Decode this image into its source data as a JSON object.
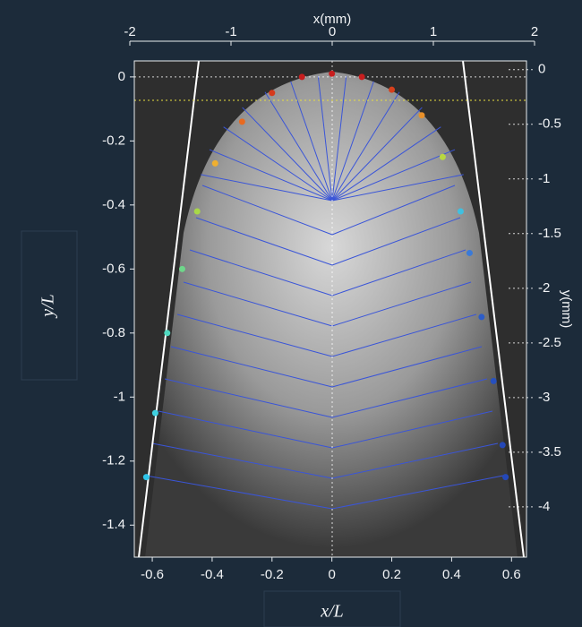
{
  "chart_data": {
    "type": "scatter",
    "title_top": "x(mm)",
    "xlabel": "x/L",
    "ylabel": "y/L",
    "y2label": "y(mm)",
    "x": [
      -0.62,
      -0.59,
      -0.55,
      -0.5,
      -0.45,
      -0.39,
      -0.3,
      -0.2,
      -0.1,
      0,
      0.1,
      0.2,
      0.3,
      0.37,
      0.43,
      0.46,
      0.5,
      0.54,
      0.57,
      0.58
    ],
    "values": [
      -1.25,
      -1.05,
      -0.8,
      -0.6,
      -0.42,
      -0.27,
      -0.14,
      -0.05,
      0,
      0.01,
      0,
      -0.04,
      -0.12,
      -0.25,
      -0.42,
      -0.55,
      -0.75,
      -0.95,
      -1.15,
      -1.25
    ],
    "colors": [
      "#2ec4e8",
      "#3fd0e0",
      "#50d8c0",
      "#6ed68a",
      "#a8d848",
      "#f0b030",
      "#e86a20",
      "#d63a1c",
      "#c81e1e",
      "#c81e1e",
      "#c81e1e",
      "#d6401c",
      "#e8902a",
      "#b8d840",
      "#40c0e0",
      "#3a7ad8",
      "#2c5cc8",
      "#2650c0",
      "#2448b8",
      "#2448b8"
    ],
    "xlim": [
      -0.66,
      0.65
    ],
    "ylim": [
      -1.5,
      0.05
    ],
    "xticks": [
      -0.6,
      -0.4,
      -0.2,
      0,
      0.2,
      0.4,
      0.6
    ],
    "yticks": [
      0,
      -0.2,
      -0.4,
      -0.6,
      -0.8,
      -1,
      -1.2,
      -1.4
    ],
    "x2lim": [
      -2,
      2
    ],
    "x2ticks": [
      -2,
      -1,
      0,
      1,
      2
    ],
    "y2lim": [
      -4.46,
      0.08
    ],
    "y2ticks": [
      0,
      -0.5,
      -1,
      -1.5,
      -2,
      -2.5,
      -3,
      -3.5,
      -4
    ]
  }
}
